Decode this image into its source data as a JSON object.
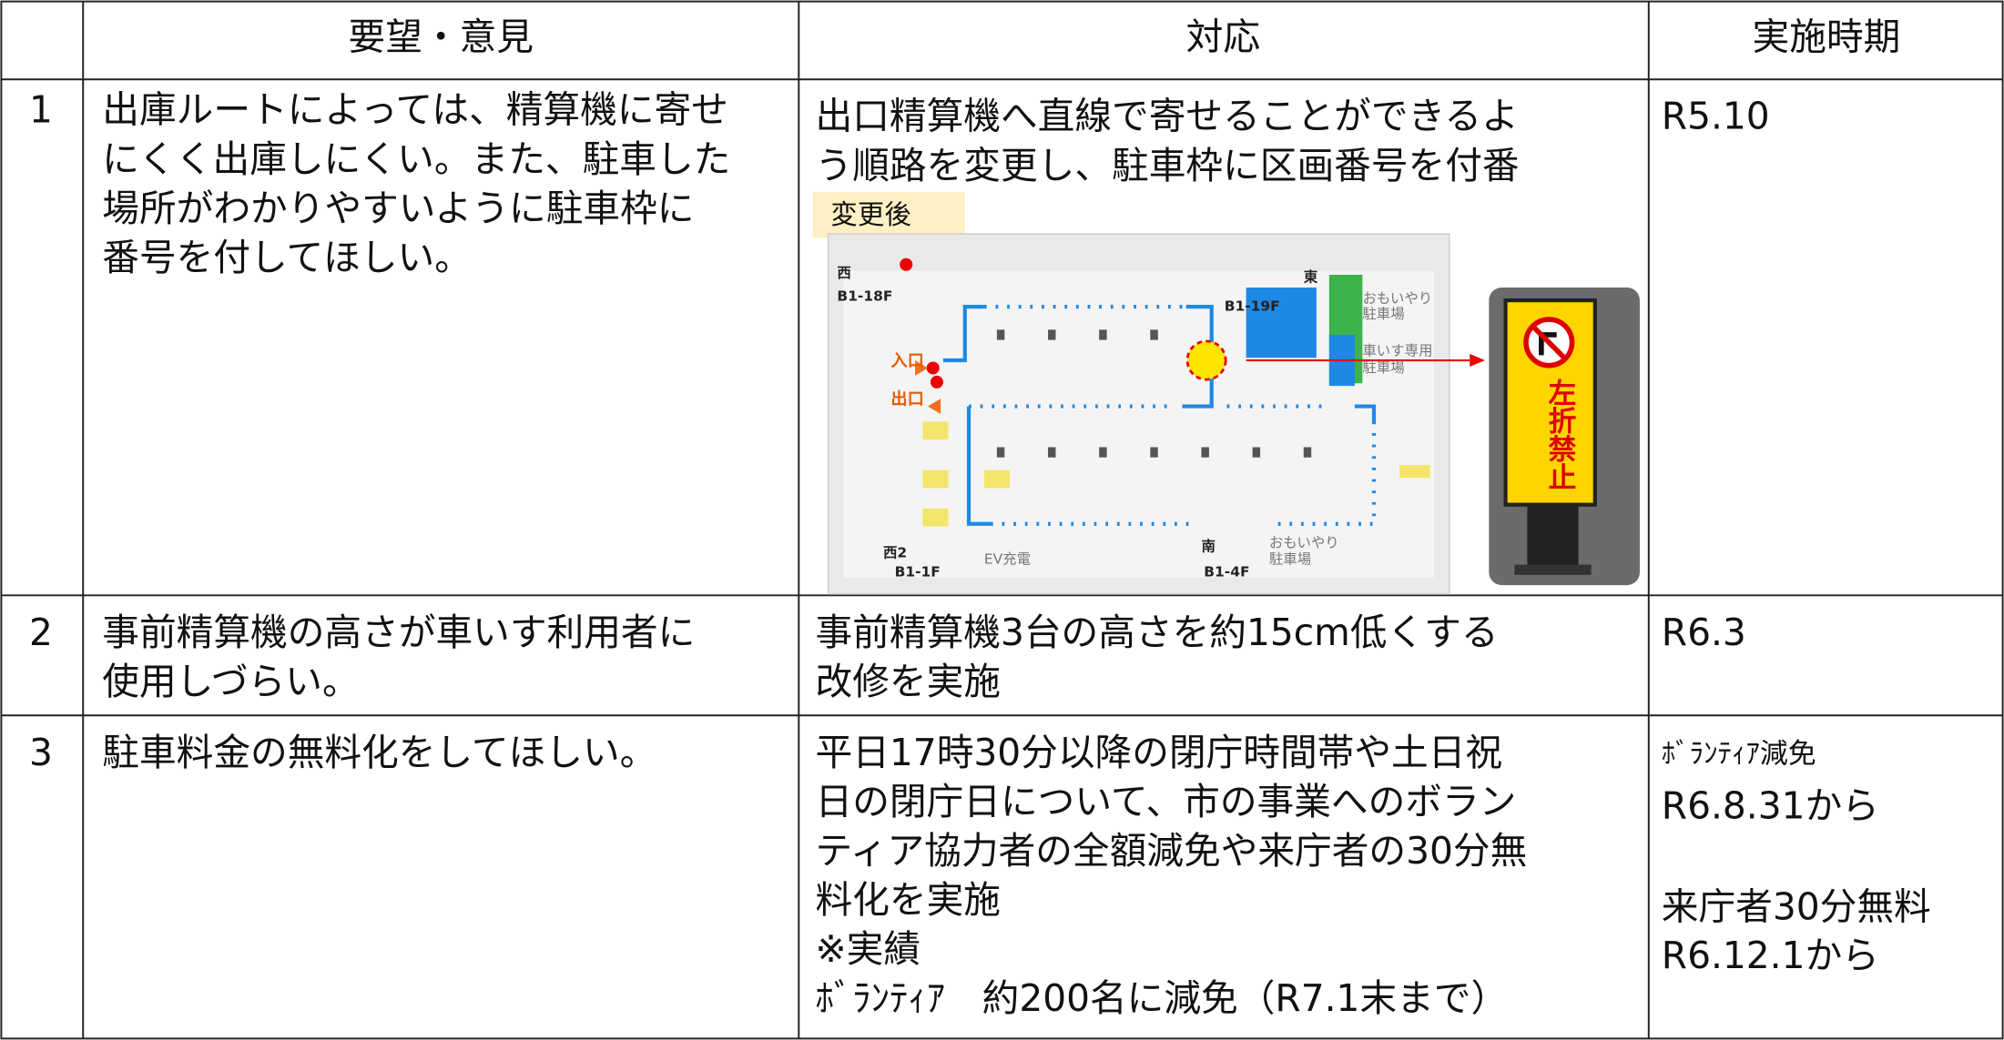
{
  "table": {
    "header": [
      "要望・意見",
      "対応",
      "実施時期"
    ],
    "rows": [
      {
        "no": "1",
        "request": [
          "出庫ルートによっては、精算機に寄せ",
          "にくく出庫しにくい。また、駐車した",
          "場所がわかりやすいように駐車枠に",
          "番号を付してほしい。"
        ],
        "response": [
          "出口精算機へ直線で寄せることができるよ",
          "う順路を変更し、駐車枠に区画番号を付番"
        ],
        "timing": [
          "R5.10"
        ]
      },
      {
        "no": "2",
        "request": [
          "事前精算機の高さが車いす利用者に",
          "使用しづらい。"
        ],
        "response": [
          "事前精算機3台の高さを約15cm低くする",
          "改修を実施"
        ],
        "timing": [
          "R6.3"
        ]
      },
      {
        "no": "3",
        "request": [
          "駐車料金の無料化をしてほしい。"
        ],
        "response": [
          "平日17時30分以降の閉庁時間帯や土日祝",
          "日の閉庁日について、市の事業へのボラン",
          "ティア協力者の全額減免や来庁者の30分無",
          "料化を実施",
          "※実績",
          " ﾎﾞﾗﾝﾃｨｱ　約200名に減免（R7.1末まで）"
        ],
        "timing": [
          "ﾎﾞﾗﾝﾃｨｱ減免",
          "R6.8.31から",
          "来庁者30分無料",
          "R6.12.1から"
        ]
      }
    ]
  },
  "figure": {
    "caption": "変更後",
    "map_labels": [
      "西",
      "B1-18F",
      "入口",
      "出口",
      "東",
      "B1-19F",
      "おもいやり",
      "駐車場",
      "車いす専用",
      "駐車場",
      "南",
      "B1-4F",
      "おもいやり",
      "駐車場",
      "西2",
      "B1-1F",
      "EV充電"
    ],
    "sign": "左折禁止"
  }
}
